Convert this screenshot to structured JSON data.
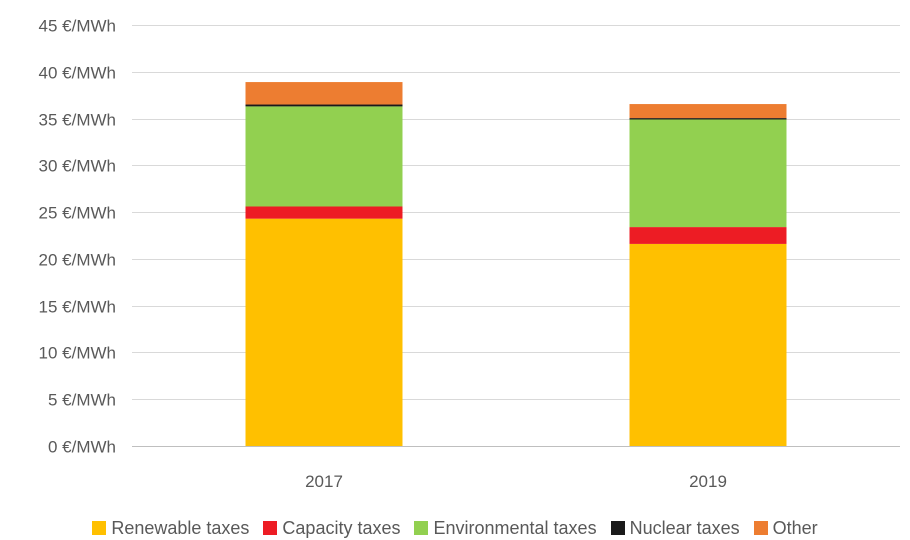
{
  "chart_data": {
    "type": "bar",
    "stacked": true,
    "categories": [
      "2017",
      "2019"
    ],
    "y_unit": "€/MWh",
    "ylim": [
      0,
      45
    ],
    "y_ticks": [
      0,
      5,
      10,
      15,
      20,
      25,
      30,
      35,
      40,
      45
    ],
    "y_tick_labels": [
      "0 €/MWh",
      "5 €/MWh",
      "10 €/MWh",
      "15 €/MWh",
      "20 €/MWh",
      "25 €/MWh",
      "30 €/MWh",
      "35 €/MWh",
      "40 €/MWh",
      "45 €/MWh"
    ],
    "grid": "horizontal",
    "legend_position": "bottom",
    "series": [
      {
        "name": "Renewable taxes",
        "color": "#FFC000",
        "values": [
          24.3,
          21.6
        ]
      },
      {
        "name": "Capacity taxes",
        "color": "#ED1C24",
        "values": [
          1.3,
          1.8
        ]
      },
      {
        "name": "Environmental taxes",
        "color": "#92D050",
        "values": [
          10.7,
          11.5
        ]
      },
      {
        "name": "Nuclear taxes",
        "color": "#1A1A1A",
        "values": [
          0.2,
          0.15
        ]
      },
      {
        "name": "Other",
        "color": "#ED7D31",
        "values": [
          2.4,
          1.5
        ]
      }
    ]
  }
}
